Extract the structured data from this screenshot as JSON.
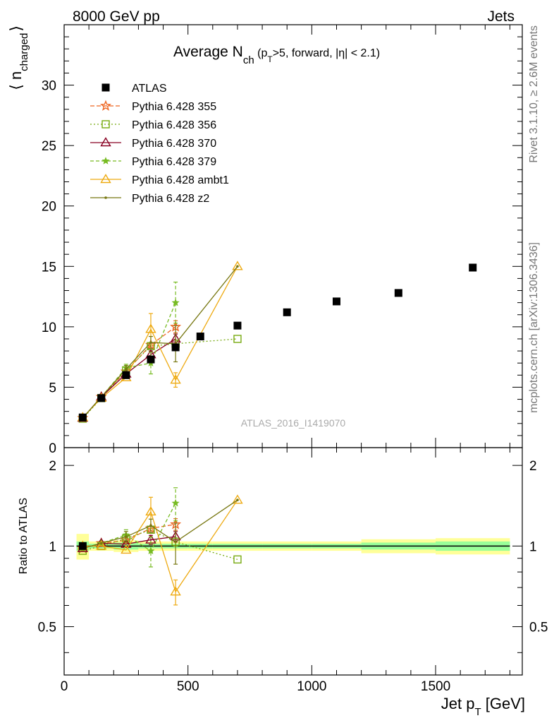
{
  "header": {
    "left": "8000 GeV pp",
    "right": "Jets",
    "side_top": "Rivet 3.1.10, ≥ 2.6M events",
    "side_bottom": "mcplots.cern.ch [arXiv:1306.3436]",
    "watermark": "ATLAS_2016_I1419070"
  },
  "title": {
    "main": "Average N",
    "sub": "ch",
    "cond_pre": " (p",
    "cond_sub": "T",
    "cond_post": ">5, forward, |η| < 2.1)"
  },
  "axes": {
    "ylabel_main": "⟨ n",
    "ylabel_sub": "charged",
    "ylabel_close": "⟩",
    "ratio_ylabel": "Ratio to ATLAS",
    "xlabel": "Jet p",
    "xlabel_sub": "T",
    "xlabel_unit": " [GeV]"
  },
  "colors": {
    "atlas": "#000000",
    "p355": "#ee6622",
    "p356": "#77aa11",
    "p370": "#880022",
    "p379": "#77bb22",
    "ambt1": "#eeaa11",
    "z2": "#777711",
    "band_inner": "#99ff99",
    "band_outer": "#ffff99"
  },
  "chart_data": {
    "type": "scatter",
    "xlim": [
      0,
      1850
    ],
    "ylim": [
      0,
      35
    ],
    "ratio_ylim": [
      0.33,
      2.33
    ],
    "x_ticks": [
      0,
      500,
      1000,
      1500
    ],
    "y_ticks": [
      0,
      5,
      10,
      15,
      20,
      25,
      30
    ],
    "ratio_ticks": [
      0.5,
      1,
      2
    ],
    "legend_position": "top-left",
    "atlas": {
      "name": "ATLAS",
      "x": [
        75,
        150,
        250,
        350,
        450,
        550,
        700,
        900,
        1100,
        1350,
        1650
      ],
      "y": [
        2.5,
        4.1,
        6.0,
        7.3,
        8.3,
        9.2,
        10.1,
        11.2,
        12.1,
        12.8,
        14.9
      ],
      "xerr": [
        25,
        50,
        50,
        50,
        50,
        50,
        100,
        100,
        100,
        150,
        150
      ],
      "band_inner": [
        0.04,
        0.02,
        0.03,
        0.02,
        0.02,
        0.02,
        0.02,
        0.02,
        0.02,
        0.03,
        0.04
      ],
      "band_outer": [
        0.11,
        0.04,
        0.05,
        0.04,
        0.04,
        0.04,
        0.04,
        0.04,
        0.04,
        0.06,
        0.07
      ]
    },
    "series": [
      {
        "name": "Pythia 6.428 355",
        "key": "p355",
        "marker": "star",
        "dash": "6,3",
        "x": [
          75,
          150,
          250,
          350,
          450
        ],
        "y": [
          2.45,
          4.2,
          6.3,
          8.5,
          10.0
        ],
        "err": [
          0.05,
          0.08,
          0.12,
          0.2,
          0.5
        ]
      },
      {
        "name": "Pythia 6.428 356",
        "key": "p356",
        "marker": "square",
        "dash": "2,3",
        "x": [
          75,
          150,
          250,
          350,
          450,
          700
        ],
        "y": [
          2.4,
          4.1,
          6.4,
          8.4,
          8.6,
          9.0
        ],
        "err": [
          0.05,
          0.08,
          0.12,
          0.2,
          0.3,
          0.2
        ]
      },
      {
        "name": "Pythia 6.428 370",
        "key": "p370",
        "marker": "triangle",
        "dash": "",
        "x": [
          75,
          150,
          250,
          350,
          450
        ],
        "y": [
          2.45,
          4.2,
          6.1,
          7.7,
          9.0
        ],
        "err": [
          0.05,
          0.08,
          0.12,
          0.3,
          0.4
        ]
      },
      {
        "name": "Pythia 6.428 379",
        "key": "p379",
        "marker": "smallstar",
        "dash": "5,3",
        "x": [
          75,
          150,
          250,
          350,
          450
        ],
        "y": [
          2.45,
          4.2,
          6.6,
          7.0,
          12.0
        ],
        "err": [
          0.05,
          0.08,
          0.3,
          0.9,
          1.7
        ]
      },
      {
        "name": "Pythia 6.428 ambt1",
        "key": "ambt1",
        "marker": "triangle",
        "dash": "",
        "x": [
          75,
          150,
          250,
          350,
          450,
          700
        ],
        "y": [
          2.5,
          4.1,
          5.8,
          9.8,
          5.6,
          15.0
        ],
        "err": [
          0.05,
          0.08,
          0.2,
          1.3,
          0.6,
          0.1
        ]
      },
      {
        "name": "Pythia 6.428 z2",
        "key": "z2",
        "marker": "dot",
        "dash": "",
        "x": [
          75,
          150,
          250,
          350,
          450,
          700
        ],
        "y": [
          2.45,
          4.2,
          6.5,
          8.7,
          8.6,
          15.0
        ],
        "err": [
          0.05,
          0.08,
          0.3,
          0.5,
          1.5,
          0.1
        ]
      }
    ]
  }
}
